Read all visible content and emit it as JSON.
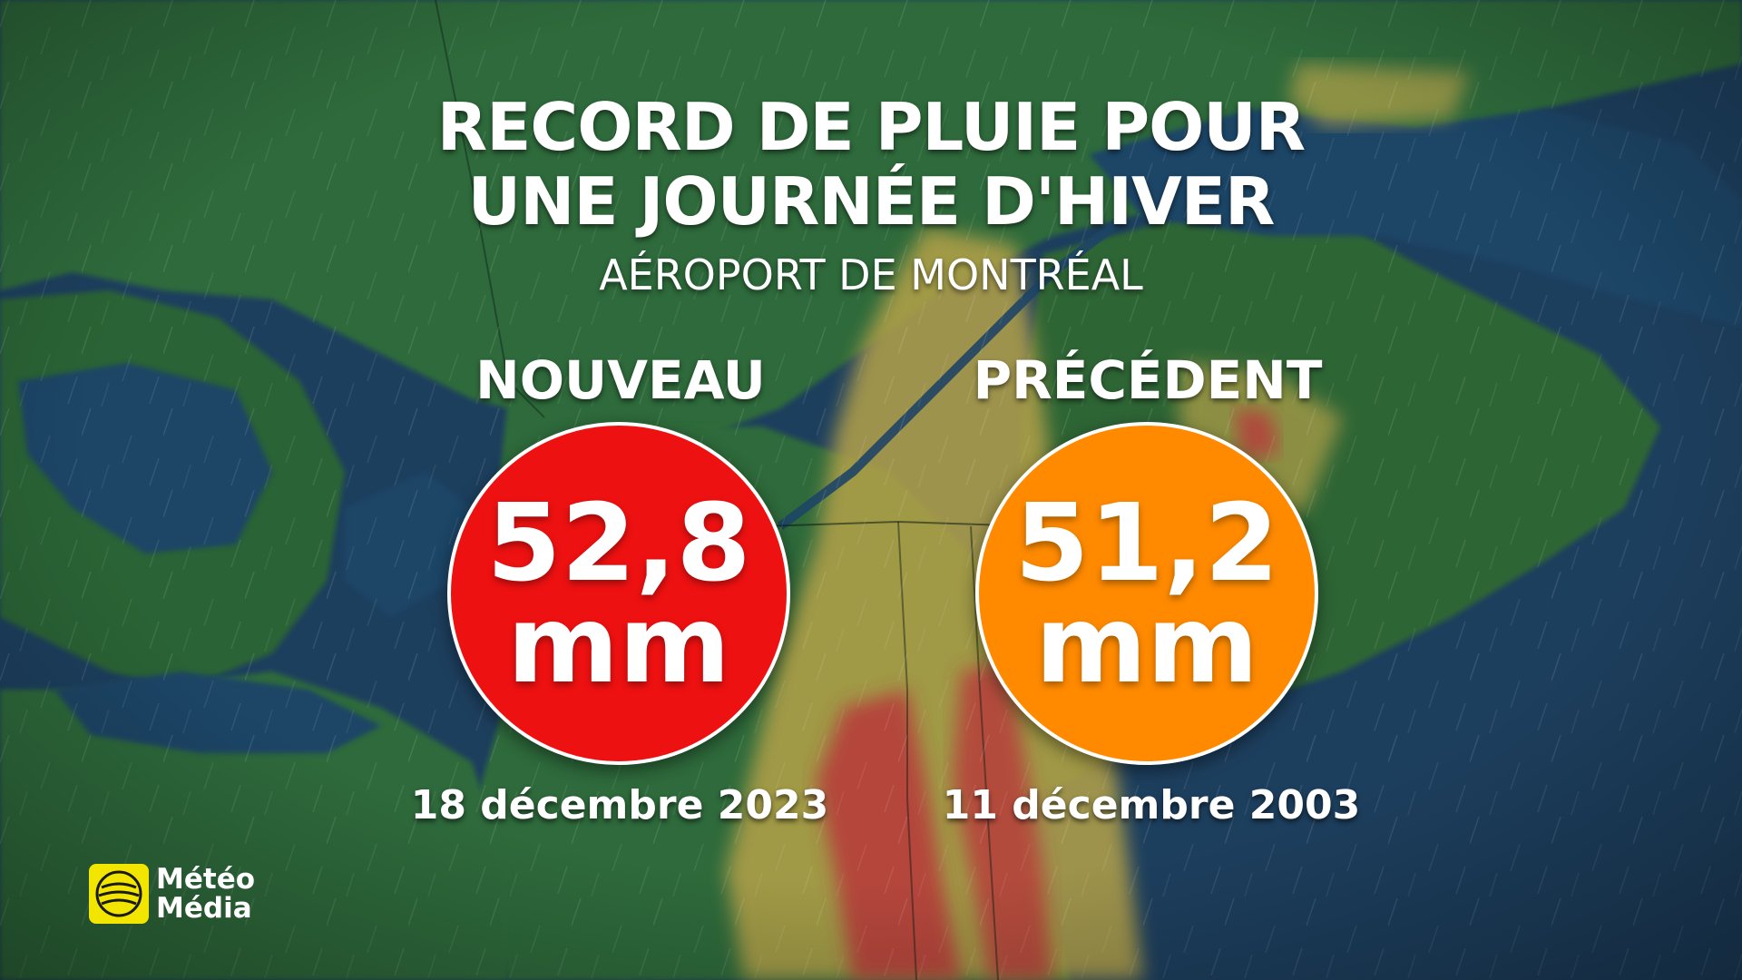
{
  "title_line1": "RECORD DE PLUIE POUR",
  "title_line2": "UNE JOURNÉE D'HIVER",
  "subtitle": "AÉROPORT DE MONTRÉAL",
  "records": [
    {
      "label": "NOUVEAU",
      "value": "52,8",
      "unit": "mm",
      "date": "18 décembre 2023",
      "color": "#ee1111"
    },
    {
      "label": "PRÉCÉDENT",
      "value": "51,2",
      "unit": "mm",
      "date": "11 décembre 2003",
      "color": "#ff8a00"
    }
  ],
  "brand": {
    "line1": "Météo",
    "line2": "Média",
    "color": "#f2e600"
  },
  "background": {
    "map_land": "#2f6a3a",
    "map_water": "#1d3f5e",
    "rain_yellow": "#b5a24a",
    "rain_red": "#b8383a"
  }
}
